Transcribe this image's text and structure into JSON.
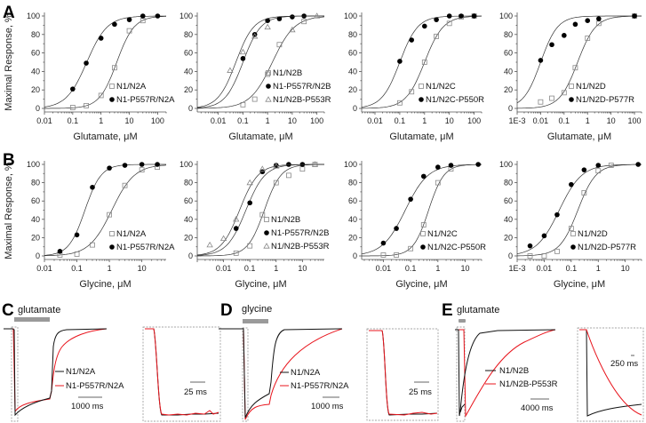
{
  "panel_letters": {
    "A": "A",
    "B": "B",
    "C": "C",
    "D": "D",
    "E": "E"
  },
  "y_axis_label": "Maximal Response, %",
  "chart_data": [
    {
      "type": "scatter",
      "panel": "A",
      "xlabel": "Glutamate, μM",
      "xscale": "log",
      "xlim": [
        0.01,
        200
      ],
      "ylim": [
        0,
        100
      ],
      "xtick_labels": [
        [
          "0.01",
          0.01
        ],
        [
          "0.1",
          0.1
        ],
        [
          "1",
          1
        ],
        [
          "10",
          10
        ],
        [
          "100",
          100
        ]
      ],
      "yticks": [
        "0",
        "20",
        "40",
        "60",
        "80",
        "100"
      ],
      "series": [
        {
          "name": "N1/N2A",
          "marker": "open-square",
          "color": "#888888",
          "x": [
            0.1,
            0.3,
            1,
            3,
            10,
            30
          ],
          "y": [
            1,
            3,
            14,
            44,
            84,
            95
          ]
        },
        {
          "name": "N1-P557R/N2A",
          "marker": "filled-circle",
          "color": "#000000",
          "x": [
            0.1,
            0.3,
            1,
            3,
            10,
            30,
            100
          ],
          "y": [
            21,
            49,
            76,
            91,
            96,
            100,
            100
          ]
        }
      ]
    },
    {
      "type": "scatter",
      "panel": "A",
      "xlabel": "Glutamate, μM",
      "xscale": "log",
      "xlim": [
        0.0014,
        200
      ],
      "ylim": [
        0,
        100
      ],
      "xtick_labels": [
        [
          "0.01",
          0.01
        ],
        [
          "0.1",
          0.1
        ],
        [
          "1",
          1
        ],
        [
          "10",
          10
        ],
        [
          "100",
          100
        ]
      ],
      "yticks": [
        "0",
        "20",
        "40",
        "60",
        "80",
        "100"
      ],
      "series": [
        {
          "name": "N1/N2B",
          "marker": "open-square",
          "color": "#888888",
          "x": [
            0.1,
            0.3,
            1,
            3,
            30
          ],
          "y": [
            4,
            10,
            37,
            69,
            94
          ]
        },
        {
          "name": "N1-P557R/N2B",
          "marker": "filled-circle",
          "color": "#000000",
          "x": [
            0.1,
            0.3,
            1,
            3,
            10,
            30
          ],
          "y": [
            54,
            80,
            95,
            97,
            99,
            100
          ]
        },
        {
          "name": "N1/N2B-P553R",
          "marker": "open-triangle",
          "color": "#888888",
          "x": [
            0.03,
            0.1,
            0.3,
            1,
            10,
            100
          ],
          "y": [
            41,
            61,
            78,
            88,
            85,
            100
          ]
        }
      ]
    },
    {
      "type": "scatter",
      "panel": "A",
      "xlabel": "Glutamate, μM",
      "xscale": "log",
      "xlim": [
        0.0029,
        200
      ],
      "ylim": [
        0,
        100
      ],
      "xtick_labels": [
        [
          "0.01",
          0.01
        ],
        [
          "0.1",
          0.1
        ],
        [
          "1",
          1
        ],
        [
          "10",
          10
        ],
        [
          "100",
          100
        ]
      ],
      "yticks": [
        "0",
        "20",
        "40",
        "60",
        "80",
        "100"
      ],
      "series": [
        {
          "name": "N1/N2C",
          "marker": "open-square",
          "color": "#888888",
          "x": [
            0.1,
            0.3,
            1,
            3,
            10,
            30,
            100
          ],
          "y": [
            6,
            18,
            50,
            78,
            92,
            99,
            100
          ]
        },
        {
          "name": "N1/N2C-P550R",
          "marker": "filled-circle",
          "color": "#000000",
          "x": [
            0.1,
            0.3,
            1,
            3,
            10,
            30,
            100
          ],
          "y": [
            51,
            74,
            89,
            96,
            100,
            100,
            100
          ]
        }
      ]
    },
    {
      "type": "scatter",
      "panel": "A",
      "xlabel": "Glutamate, μM",
      "xscale": "log",
      "xlim": [
        0.001,
        200
      ],
      "ylim": [
        0,
        100
      ],
      "xtick_labels": [
        [
          "1E-3",
          0.001
        ],
        [
          "0.01",
          0.01
        ],
        [
          "0.1",
          0.1
        ],
        [
          "1",
          1
        ],
        [
          "10",
          10
        ],
        [
          "100",
          100
        ]
      ],
      "yticks": [
        "0",
        "20",
        "40",
        "60",
        "80",
        "100"
      ],
      "series": [
        {
          "name": "N1/N2D",
          "marker": "open-square",
          "color": "#888888",
          "x": [
            0.01,
            0.03,
            0.1,
            0.3,
            1,
            3,
            100
          ],
          "y": [
            7,
            11,
            17,
            44,
            76,
            92,
            100
          ]
        },
        {
          "name": "N1/N2D-P577R",
          "marker": "filled-circle",
          "color": "#000000",
          "x": [
            0.01,
            0.03,
            0.1,
            0.3,
            1,
            3,
            100
          ],
          "y": [
            52,
            69,
            79,
            91,
            95,
            97,
            100
          ]
        }
      ]
    },
    {
      "type": "scatter",
      "panel": "B",
      "xlabel": "Glycine, μM",
      "xscale": "log",
      "xlim": [
        0.01,
        56
      ],
      "ylim": [
        0,
        100
      ],
      "xtick_labels": [
        [
          "0.01",
          0.01
        ],
        [
          "0.1",
          0.1
        ],
        [
          "1",
          1
        ],
        [
          "10",
          10
        ]
      ],
      "yticks": [
        "0",
        "20",
        "40",
        "60",
        "80",
        "100"
      ],
      "series": [
        {
          "name": "N1/N2A",
          "marker": "open-square",
          "color": "#888888",
          "x": [
            0.03,
            0.1,
            0.3,
            1,
            3,
            10,
            30
          ],
          "y": [
            1,
            2,
            12,
            45,
            77,
            94,
            97
          ]
        },
        {
          "name": "N1-P557R/N2A",
          "marker": "filled-circle",
          "color": "#000000",
          "x": [
            0.03,
            0.1,
            0.3,
            1,
            3,
            10,
            30
          ],
          "y": [
            5,
            23,
            75,
            96,
            99,
            100,
            100
          ]
        }
      ]
    },
    {
      "type": "scatter",
      "panel": "B",
      "xlabel": "Glycine, μM",
      "xscale": "log",
      "xlim": [
        0.001,
        68
      ],
      "ylim": [
        0,
        100
      ],
      "xtick_labels": [
        [
          "0.01",
          0.01
        ],
        [
          "0.1",
          0.1
        ],
        [
          "1",
          1
        ],
        [
          "10",
          10
        ]
      ],
      "yticks": [
        "0",
        "20",
        "40",
        "60",
        "80",
        "100"
      ],
      "series": [
        {
          "name": "N1/N2B",
          "marker": "open-square",
          "color": "#888888",
          "x": [
            0.03,
            0.1,
            0.3,
            1,
            3,
            10,
            30
          ],
          "y": [
            3,
            11,
            45,
            80,
            88,
            95,
            100
          ]
        },
        {
          "name": "N1-P557R/N2B",
          "marker": "filled-circle",
          "color": "#000000",
          "x": [
            0.03,
            0.1,
            0.3,
            1,
            3,
            10
          ],
          "y": [
            30,
            58,
            92,
            99,
            100,
            100
          ]
        },
        {
          "name": "N1/N2B-P553R",
          "marker": "open-triangle",
          "color": "#888888",
          "x": [
            0.003,
            0.01,
            0.03,
            0.1,
            0.3,
            1,
            30
          ],
          "y": [
            12,
            19,
            40,
            80,
            95,
            98,
            100
          ]
        }
      ]
    },
    {
      "type": "scatter",
      "panel": "B",
      "xlabel": "Glycine, μM",
      "xscale": "log",
      "xlim": [
        0.0016,
        40
      ],
      "ylim": [
        0,
        100
      ],
      "xtick_labels": [
        [
          "0.01",
          0.01
        ],
        [
          "0.1",
          0.1
        ],
        [
          "1",
          1
        ],
        [
          "10",
          10
        ]
      ],
      "yticks": [
        "0",
        "20",
        "40",
        "60",
        "80",
        "100"
      ],
      "series": [
        {
          "name": "N1/N2C",
          "marker": "open-square",
          "color": "#888888",
          "x": [
            0.01,
            0.03,
            0.1,
            0.3,
            1,
            3
          ],
          "y": [
            1,
            1,
            8,
            34,
            80,
            95
          ]
        },
        {
          "name": "N1/N2C-P550R",
          "marker": "filled-circle",
          "color": "#000000",
          "x": [
            0.01,
            0.03,
            0.1,
            0.3,
            1,
            3,
            30
          ],
          "y": [
            14,
            30,
            62,
            87,
            97,
            99,
            100
          ]
        }
      ]
    },
    {
      "type": "scatter",
      "panel": "B",
      "xlabel": "Glycine, μM",
      "xscale": "log",
      "xlim": [
        0.001,
        40
      ],
      "ylim": [
        0,
        100
      ],
      "xtick_labels": [
        [
          "1E-3",
          0.001
        ],
        [
          "0.01",
          0.01
        ],
        [
          "0.1",
          0.1
        ],
        [
          "1",
          1
        ],
        [
          "10",
          10
        ]
      ],
      "yticks": [
        "0",
        "20",
        "40",
        "60",
        "80",
        "100"
      ],
      "series": [
        {
          "name": "N1/N2D",
          "marker": "open-square",
          "color": "#888888",
          "x": [
            0.003,
            0.01,
            0.03,
            0.1,
            0.3,
            1,
            3
          ],
          "y": [
            0,
            0,
            5,
            30,
            69,
            93,
            99
          ]
        },
        {
          "name": "N1/N2D-P577R",
          "marker": "filled-circle",
          "color": "#000000",
          "x": [
            0.003,
            0.01,
            0.03,
            0.1,
            0.3,
            1,
            30
          ],
          "y": [
            11,
            22,
            45,
            78,
            94,
            99,
            100
          ]
        }
      ]
    }
  ],
  "traces": {
    "C": {
      "agonist": "glutamate",
      "series": [
        "N1/N2A",
        "N1-P557R/N2A"
      ],
      "scale_main": "1000 ms",
      "scale_inset": "25 ms"
    },
    "D": {
      "agonist": "glycine",
      "series": [
        "N1/N2A",
        "N1-P557R/N2A"
      ],
      "scale_main": "1000 ms",
      "scale_inset": "25 ms"
    },
    "E": {
      "agonist": "glutamate",
      "series": [
        "N1/N2B",
        "N1/N2B-P553R"
      ],
      "scale_main": "4000 ms",
      "scale_inset": "250 ms"
    },
    "colors": {
      "wild_type": "#111111",
      "mutant": "#e8141c",
      "application_bar": "#9a9a9a"
    }
  }
}
